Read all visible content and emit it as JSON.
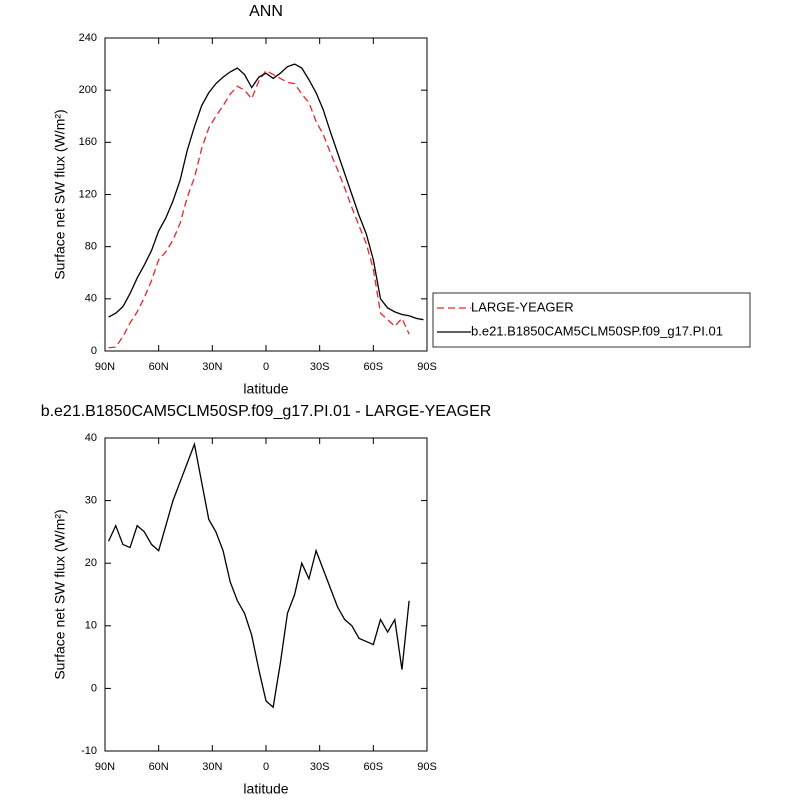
{
  "chart_data": [
    {
      "type": "line",
      "title": "ANN",
      "xlabel": "latitude",
      "ylabel": "Surface net SW flux (W/m²)",
      "x": [
        88,
        84,
        80,
        76,
        72,
        68,
        64,
        60,
        56,
        52,
        48,
        44,
        40,
        36,
        32,
        28,
        24,
        20,
        16,
        12,
        8,
        4,
        0,
        -4,
        -8,
        -12,
        -16,
        -20,
        -24,
        -28,
        -32,
        -36,
        -40,
        -44,
        -48,
        -52,
        -56,
        -60,
        -64,
        -68,
        -72,
        -76,
        -80,
        -84,
        -88
      ],
      "series": [
        {
          "name": "LARGE-YEAGER",
          "color": "#e8262b",
          "linestyle": "dashed",
          "values": [
            2.5,
            3,
            11,
            21.5,
            30,
            41,
            54,
            70,
            76,
            85,
            98,
            118,
            133,
            155,
            171,
            180,
            188,
            197,
            203,
            200,
            193.5,
            207,
            215,
            212,
            209,
            206,
            205,
            197,
            190.5,
            176,
            166,
            152,
            139,
            125,
            110,
            96,
            82.5,
            63,
            29,
            24,
            19,
            25,
            13,
            null,
            null
          ]
        },
        {
          "name": "b.e21.B1850CAM5CLM50SP.f09_g17.PI.01",
          "color": "#000000",
          "linestyle": "solid",
          "values": [
            26,
            29,
            34,
            44,
            56,
            66,
            77,
            92,
            102,
            115,
            131,
            154,
            172,
            188,
            198,
            205,
            210,
            214,
            217,
            212,
            202,
            210,
            213,
            209,
            213,
            218,
            220,
            217,
            208,
            198,
            185,
            168,
            152,
            136,
            120,
            104,
            90,
            70,
            40,
            33,
            30,
            28,
            27,
            25,
            24
          ]
        }
      ],
      "xlim": [
        90,
        -90
      ],
      "xticks": [
        {
          "value": 90,
          "label": "90N"
        },
        {
          "value": 60,
          "label": "60N"
        },
        {
          "value": 30,
          "label": "30N"
        },
        0,
        {
          "value": -30,
          "label": "30S"
        },
        {
          "value": -60,
          "label": "60S"
        },
        {
          "value": -90,
          "label": "90S"
        }
      ],
      "ylim": [
        0,
        240
      ],
      "yticks": [
        0,
        40,
        80,
        120,
        160,
        200,
        240
      ]
    },
    {
      "type": "line",
      "title": "b.e21.B1850CAM5CLM50SP.f09_g17.PI.01 - LARGE-YEAGER",
      "xlabel": "latitude",
      "ylabel": "Surface net SW flux (W/m²)",
      "x": [
        88,
        84,
        80,
        76,
        72,
        68,
        64,
        60,
        56,
        52,
        48,
        44,
        40,
        36,
        32,
        28,
        24,
        20,
        16,
        12,
        8,
        4,
        0,
        -4,
        -8,
        -12,
        -16,
        -20,
        -24,
        -28,
        -32,
        -36,
        -40,
        -44,
        -48,
        -52,
        -56,
        -60,
        -64,
        -68,
        -72,
        -76,
        -80
      ],
      "values": [
        23.5,
        26,
        23,
        22.5,
        26,
        25,
        23,
        22,
        26,
        30,
        33,
        36,
        39,
        33,
        27,
        25,
        22,
        17,
        14,
        12,
        8.5,
        3,
        -2,
        -3,
        4,
        12,
        15,
        20,
        17.5,
        22,
        19,
        16,
        13,
        11,
        10,
        8,
        7.5,
        7,
        11,
        9,
        11,
        3,
        14
      ],
      "color": "#000000",
      "xlim": [
        90,
        -90
      ],
      "xticks": [
        {
          "value": 90,
          "label": "90N"
        },
        {
          "value": 60,
          "label": "60N"
        },
        {
          "value": 30,
          "label": "30N"
        },
        0,
        {
          "value": -30,
          "label": "30S"
        },
        {
          "value": -60,
          "label": "60S"
        },
        {
          "value": -90,
          "label": "90S"
        }
      ],
      "ylim": [
        -10,
        40
      ],
      "yticks": [
        -10,
        0,
        10,
        20,
        30,
        40
      ]
    }
  ]
}
